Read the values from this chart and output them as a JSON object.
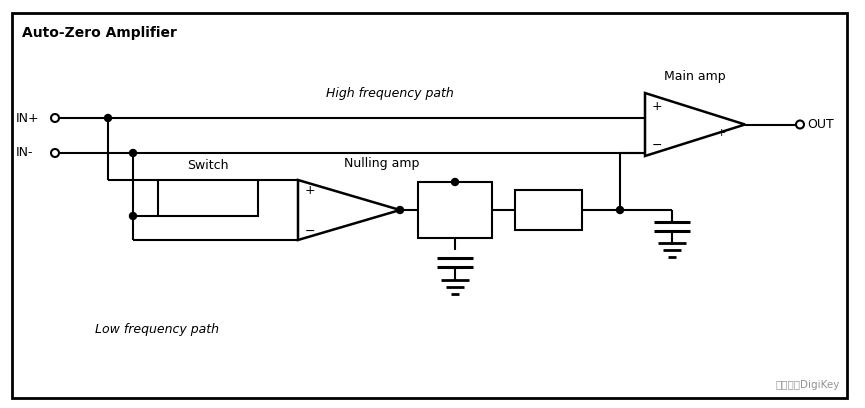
{
  "bg_color": "#ffffff",
  "line_color": "#000000",
  "labels": {
    "title": "Auto-Zero Amplifier",
    "in_plus": "IN+",
    "in_minus": "IN-",
    "out": "OUT",
    "high_freq": "High frequency path",
    "low_freq": "Low frequency path",
    "switch": "Switch",
    "nulling_amp": "Nulling amp",
    "main_amp": "Main amp"
  },
  "watermark": "得捷电子DigiKey"
}
